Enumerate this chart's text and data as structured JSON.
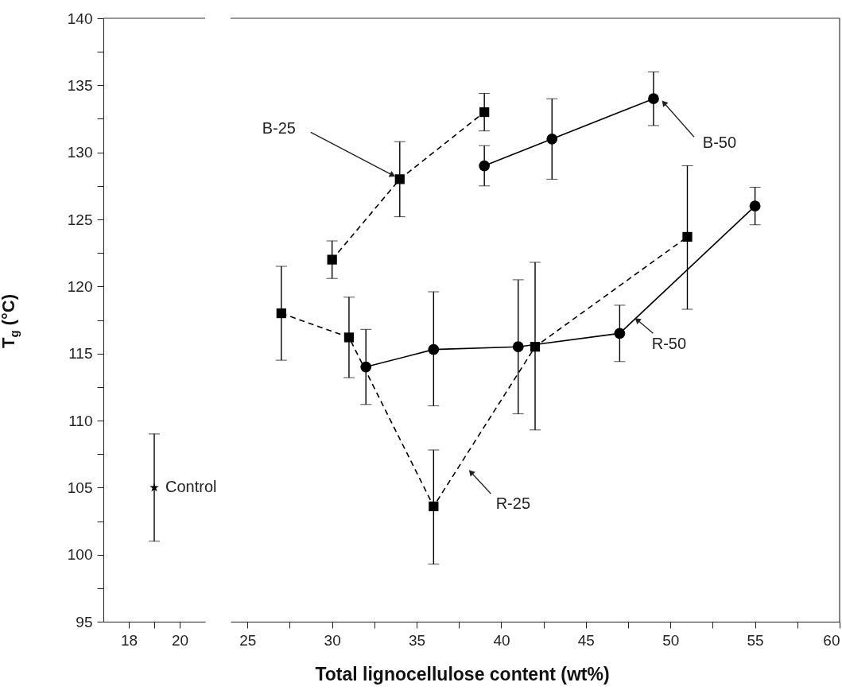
{
  "chart_data": [
    {
      "type": "scatter",
      "xlim": [
        17,
        21
      ],
      "ylim": [
        95,
        140
      ],
      "xticks": [
        18,
        {
          "value": 19,
          "label": null
        },
        20
      ],
      "yticks": [
        95,
        {
          "value": 97.5,
          "label": null
        },
        100,
        {
          "value": 102.5,
          "label": null
        },
        105,
        {
          "value": 107.5,
          "label": null
        },
        110,
        {
          "value": 112.5,
          "label": null
        },
        115,
        {
          "value": 117.5,
          "label": null
        },
        120,
        {
          "value": 122.5,
          "label": null
        },
        125,
        {
          "value": 127.5,
          "label": null
        },
        130,
        {
          "value": 132.5,
          "label": null
        },
        135,
        {
          "value": 137.5,
          "label": null
        },
        140
      ],
      "ylabel": "T$_{g}$ (°C)",
      "series": [
        {
          "name": "Control",
          "color": "#000000",
          "marker": "star",
          "x": [
            19
          ],
          "values": [
            105
          ],
          "errors": [
            [
              101,
              109
            ]
          ]
        }
      ]
    },
    {
      "type": "line",
      "xlim": [
        24,
        60
      ],
      "ylim": [
        95,
        140
      ],
      "xticks": [
        25,
        {
          "value": 27.5,
          "label": null
        },
        30,
        {
          "value": 32.5,
          "label": null
        },
        35,
        {
          "value": 37.5,
          "label": null
        },
        40,
        {
          "value": 42.5,
          "label": null
        },
        45,
        {
          "value": 47.5,
          "label": null
        },
        50,
        {
          "value": 52.5,
          "label": null
        },
        55,
        {
          "value": 57.5,
          "label": null
        },
        60
      ],
      "tick_labels": "x",
      "xlabel": "Total lignocellulose content (wt%)",
      "series": [
        {
          "name": "B-25",
          "color": "#000000",
          "marker": "square",
          "line_style": "dashed",
          "x": [
            30,
            34,
            39
          ],
          "values": [
            122,
            128,
            133
          ],
          "errors": [
            [
              120.6,
              123.4
            ],
            [
              125.2,
              130.8
            ],
            [
              131.6,
              134.4
            ]
          ]
        },
        {
          "name": "B-50",
          "color": "#000000",
          "marker": "circle",
          "line_style": "solid",
          "x": [
            39,
            43,
            49
          ],
          "values": [
            129,
            131,
            134
          ],
          "errors": [
            [
              127.5,
              130.5
            ],
            [
              128,
              134
            ],
            [
              132,
              136
            ]
          ]
        },
        {
          "name": "R-25",
          "color": "#000000",
          "marker": "square",
          "line_style": "dashed",
          "x": [
            27,
            31,
            36,
            42,
            51
          ],
          "values": [
            118,
            116.2,
            103.6,
            115.5,
            123.7
          ],
          "errors": [
            [
              114.5,
              121.5
            ],
            [
              113.2,
              119.2
            ],
            [
              99.3,
              107.8
            ],
            [
              109.3,
              121.8
            ],
            [
              118.3,
              129
            ]
          ]
        },
        {
          "name": "R-50",
          "color": "#000000",
          "marker": "circle",
          "line_style": "solid",
          "x": [
            32,
            36,
            41,
            47,
            55
          ],
          "values": [
            114,
            115.3,
            115.5,
            116.5,
            126
          ],
          "errors": [
            [
              111.2,
              116.8
            ],
            [
              111.1,
              119.6
            ],
            [
              110.5,
              120.5
            ],
            [
              114.4,
              118.6
            ],
            [
              124.6,
              127.4
            ]
          ]
        }
      ]
    }
  ]
}
